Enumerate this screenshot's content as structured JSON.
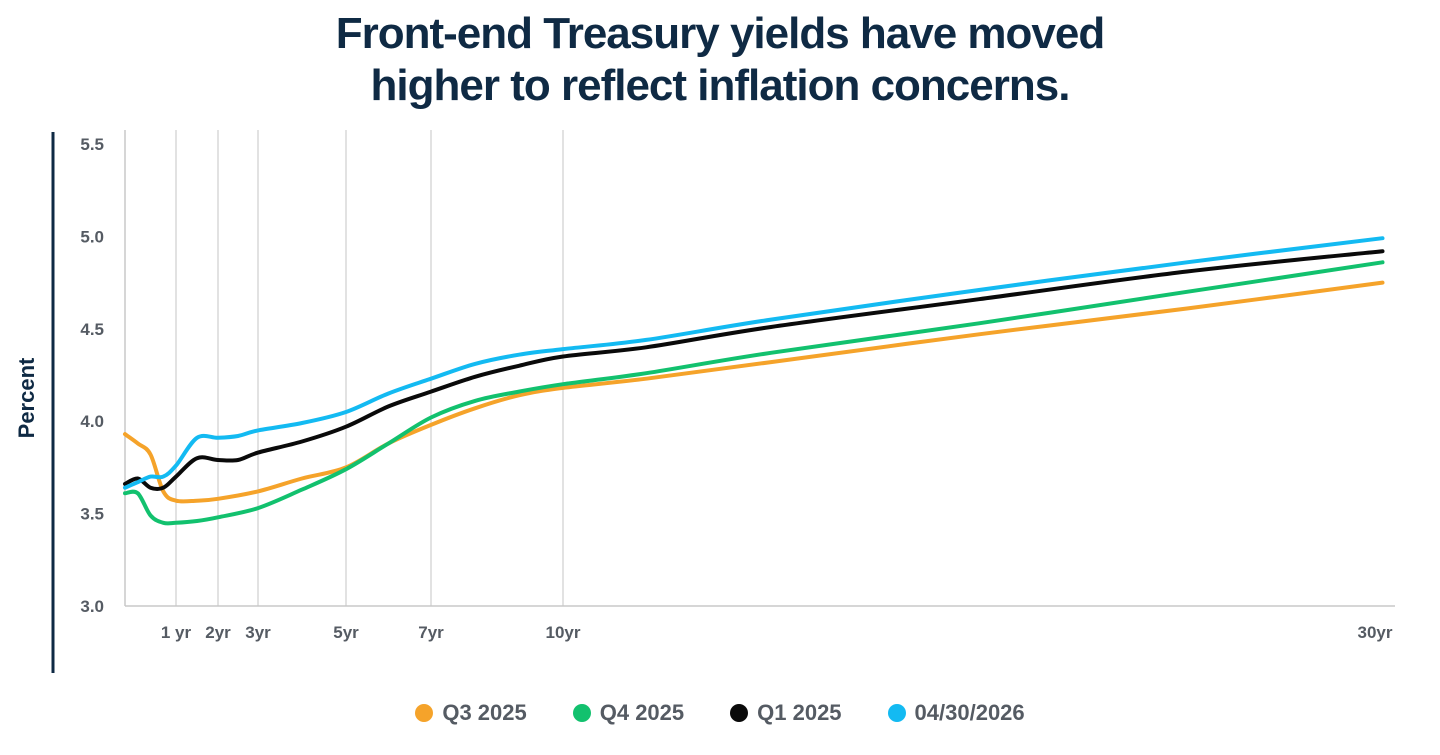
{
  "title_lines": [
    "Front-end Treasury yields have moved",
    "higher to reflect inflation concerns."
  ],
  "chart_data": {
    "type": "line",
    "title": "Front-end Treasury yields have moved higher to reflect inflation concerns.",
    "xlabel": "",
    "ylabel": "Percent",
    "xlim": [
      0,
      30
    ],
    "ylim": [
      3.0,
      5.5
    ],
    "y_ticks": [
      "3.0",
      "3.5",
      "4.0",
      "4.5",
      "5.0",
      "5.5"
    ],
    "x_ticks": [
      {
        "x": 1,
        "label": "1 yr"
      },
      {
        "x": 2,
        "label": "2yr"
      },
      {
        "x": 3,
        "label": "3yr"
      },
      {
        "x": 5,
        "label": "5yr"
      },
      {
        "x": 7,
        "label": "7yr"
      },
      {
        "x": 10,
        "label": "10yr"
      },
      {
        "x": 30,
        "label": "30yr"
      }
    ],
    "grid": "vertical lines at tenors",
    "legend_position": "bottom",
    "series": [
      {
        "name": "Q3 2025",
        "color": "#f5a32a",
        "points": [
          [
            0,
            3.93
          ],
          [
            0.25,
            3.88
          ],
          [
            0.5,
            3.82
          ],
          [
            0.75,
            3.62
          ],
          [
            1,
            3.57
          ],
          [
            1.5,
            3.57
          ],
          [
            2,
            3.58
          ],
          [
            3,
            3.62
          ],
          [
            4,
            3.69
          ],
          [
            5,
            3.75
          ],
          [
            6,
            3.88
          ],
          [
            7,
            3.98
          ],
          [
            8,
            4.07
          ],
          [
            9,
            4.14
          ],
          [
            10,
            4.18
          ],
          [
            12,
            4.23
          ],
          [
            15,
            4.32
          ],
          [
            20,
            4.47
          ],
          [
            25,
            4.61
          ],
          [
            29.7,
            4.75
          ]
        ]
      },
      {
        "name": "Q4 2025",
        "color": "#12c16e",
        "points": [
          [
            0,
            3.61
          ],
          [
            0.25,
            3.61
          ],
          [
            0.5,
            3.49
          ],
          [
            0.75,
            3.45
          ],
          [
            1,
            3.45
          ],
          [
            1.5,
            3.46
          ],
          [
            2,
            3.48
          ],
          [
            3,
            3.53
          ],
          [
            4,
            3.63
          ],
          [
            5,
            3.74
          ],
          [
            6,
            3.88
          ],
          [
            7,
            4.02
          ],
          [
            8,
            4.11
          ],
          [
            9,
            4.16
          ],
          [
            10,
            4.2
          ],
          [
            12,
            4.26
          ],
          [
            15,
            4.37
          ],
          [
            20,
            4.53
          ],
          [
            25,
            4.7
          ],
          [
            29.7,
            4.86
          ]
        ]
      },
      {
        "name": "Q1 2025",
        "color": "#0a0a0a",
        "points": [
          [
            0,
            3.66
          ],
          [
            0.25,
            3.69
          ],
          [
            0.5,
            3.64
          ],
          [
            0.75,
            3.64
          ],
          [
            1,
            3.7
          ],
          [
            1.5,
            3.8
          ],
          [
            2,
            3.79
          ],
          [
            2.5,
            3.79
          ],
          [
            3,
            3.83
          ],
          [
            4,
            3.89
          ],
          [
            5,
            3.97
          ],
          [
            6,
            4.08
          ],
          [
            7,
            4.16
          ],
          [
            8,
            4.24
          ],
          [
            9,
            4.3
          ],
          [
            10,
            4.35
          ],
          [
            12,
            4.4
          ],
          [
            15,
            4.51
          ],
          [
            20,
            4.66
          ],
          [
            25,
            4.81
          ],
          [
            29.7,
            4.92
          ]
        ]
      },
      {
        "name": "04/30/2026",
        "color": "#13baf2",
        "points": [
          [
            0,
            3.64
          ],
          [
            0.25,
            3.67
          ],
          [
            0.5,
            3.7
          ],
          [
            0.75,
            3.7
          ],
          [
            1,
            3.76
          ],
          [
            1.5,
            3.91
          ],
          [
            2,
            3.91
          ],
          [
            2.5,
            3.92
          ],
          [
            3,
            3.95
          ],
          [
            4,
            3.99
          ],
          [
            5,
            4.05
          ],
          [
            6,
            4.15
          ],
          [
            7,
            4.23
          ],
          [
            8,
            4.31
          ],
          [
            9,
            4.36
          ],
          [
            10,
            4.39
          ],
          [
            12,
            4.44
          ],
          [
            15,
            4.55
          ],
          [
            20,
            4.71
          ],
          [
            25,
            4.86
          ],
          [
            29.7,
            4.99
          ]
        ]
      }
    ]
  }
}
